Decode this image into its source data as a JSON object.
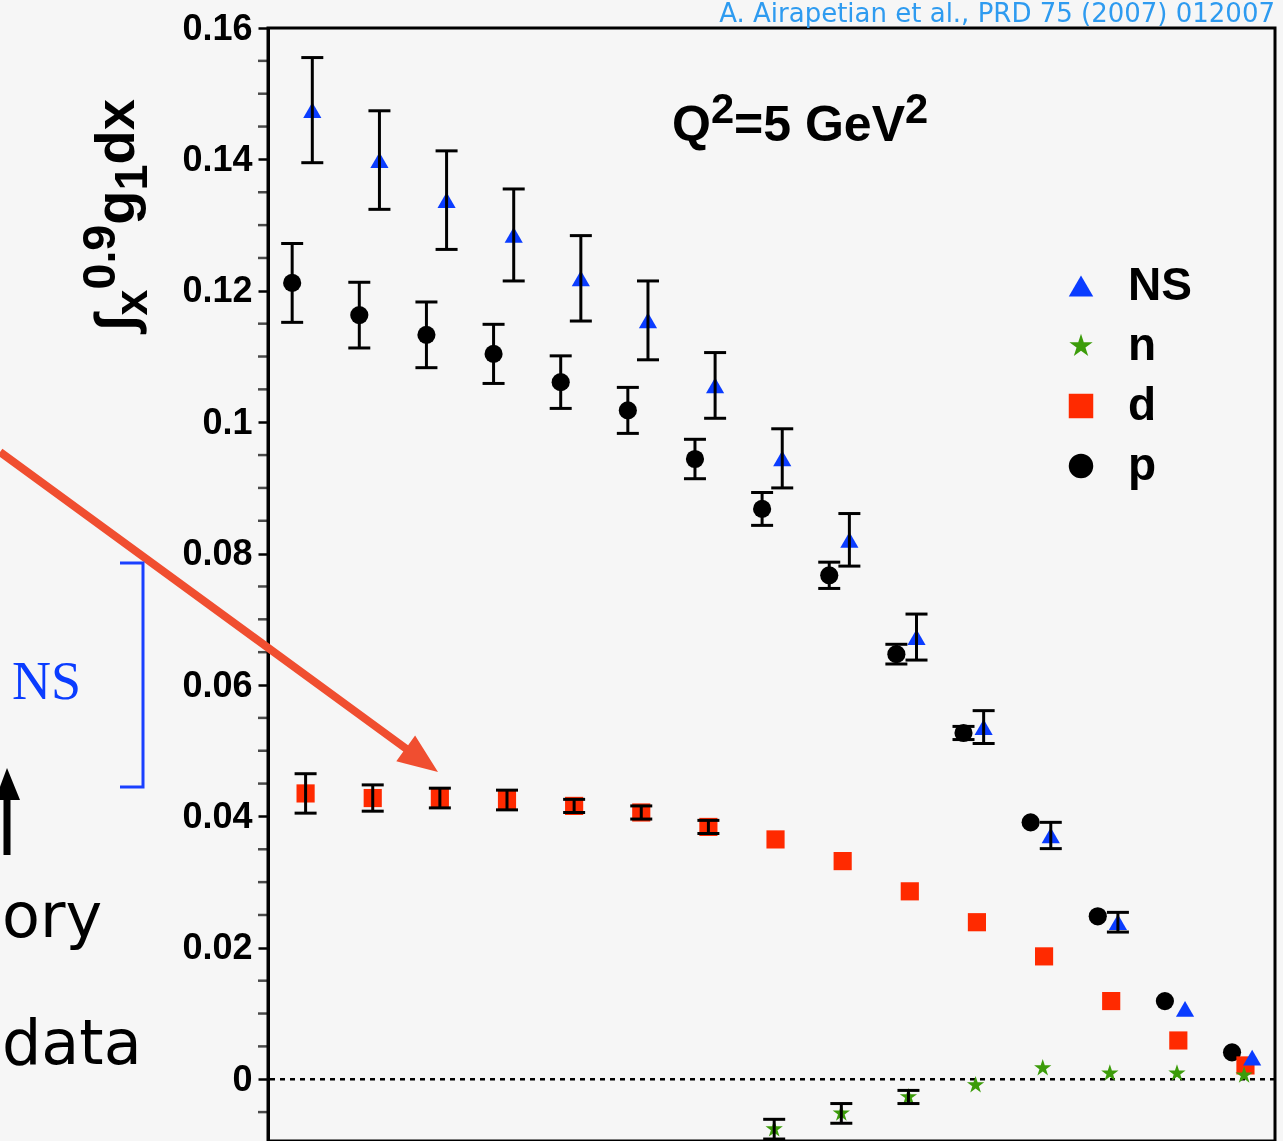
{
  "chart_data": {
    "type": "scatter",
    "ylabel": "∫$_{x}$$^{0.9}$g$_{1}$dx",
    "annotations": [
      "A. Airapetian et al., PRD 75 (2007) 012007",
      "Q$^{2}$=5 GeV$^{2}$",
      "NS",
      "ory",
      "data"
    ],
    "categories": [
      null,
      null,
      null,
      null,
      null,
      null,
      null,
      null,
      null,
      null,
      null,
      null,
      null,
      null,
      null
    ],
    "series": [
      {
        "name": "NS",
        "color": "#0a3cff",
        "marker": "triangle",
        "values": [
          0.1475,
          0.1399,
          0.1338,
          0.1285,
          0.1219,
          0.1155,
          0.1056,
          0.0945,
          0.0821,
          0.0673,
          0.0536,
          0.0371,
          0.0239,
          0.0107,
          0.0033
        ],
        "errors": [
          0.008,
          0.0075,
          0.0075,
          0.007,
          0.0065,
          0.006,
          0.005,
          0.0045,
          0.004,
          0.0035,
          0.0025,
          0.002,
          0.0015,
          null,
          null
        ]
      },
      {
        "name": "n",
        "color": "#3c9c0a",
        "marker": "star",
        "values": [
          null,
          null,
          null,
          null,
          null,
          null,
          null,
          -0.0076,
          -0.0052,
          -0.0027,
          -0.0009,
          0.0017,
          0.0009,
          0.0009,
          0.0006
        ],
        "errors": [
          null,
          null,
          null,
          null,
          null,
          null,
          null,
          0.0015,
          0.0015,
          0.001,
          null,
          null,
          null,
          null,
          null
        ]
      },
      {
        "name": "d",
        "color": "#ff2a00",
        "marker": "square",
        "values": [
          0.0435,
          0.0428,
          0.0428,
          0.0425,
          0.0416,
          0.0406,
          0.0384,
          0.0365,
          0.0332,
          0.0286,
          0.0239,
          0.0187,
          0.0119,
          0.0059,
          0.0021
        ],
        "errors": [
          0.003,
          0.002,
          0.0015,
          0.0015,
          0.001,
          0.001,
          0.001,
          null,
          null,
          null,
          null,
          null,
          null,
          null,
          null
        ]
      },
      {
        "name": "p",
        "color": "#000000",
        "marker": "circle",
        "values": [
          0.1212,
          0.1163,
          0.1133,
          0.1104,
          0.1061,
          0.1018,
          0.0944,
          0.0868,
          0.0767,
          0.0647,
          0.0527,
          0.0391,
          0.0248,
          0.0119,
          0.0041
        ],
        "errors": [
          0.006,
          0.005,
          0.005,
          0.0045,
          0.004,
          0.0035,
          0.003,
          0.0025,
          0.002,
          0.0015,
          0.001,
          null,
          null,
          null,
          null
        ]
      }
    ],
    "ylim": [
      -0.0094,
      0.16
    ],
    "yticks": [
      {
        "value": -0.005,
        "label": null
      },
      0,
      {
        "value": 0.005,
        "label": null
      },
      {
        "value": 0.01,
        "label": null
      },
      {
        "value": 0.015,
        "label": null
      },
      0.02,
      {
        "value": 0.025,
        "label": null
      },
      {
        "value": 0.03,
        "label": null
      },
      {
        "value": 0.035,
        "label": null
      },
      0.04,
      {
        "value": 0.045,
        "label": null
      },
      {
        "value": 0.05,
        "label": null
      },
      {
        "value": 0.055,
        "label": null
      },
      0.06,
      {
        "value": 0.065,
        "label": null
      },
      {
        "value": 0.07,
        "label": null
      },
      {
        "value": 0.075,
        "label": null
      },
      0.08,
      {
        "value": 0.085,
        "label": null
      },
      {
        "value": 0.09,
        "label": null
      },
      {
        "value": 0.095,
        "label": null
      },
      0.1,
      {
        "value": 0.105,
        "label": null
      },
      {
        "value": 0.11,
        "label": null
      },
      {
        "value": 0.115,
        "label": null
      },
      0.12,
      {
        "value": 0.125,
        "label": null
      },
      {
        "value": 0.13,
        "label": null
      },
      {
        "value": 0.135,
        "label": null
      },
      0.14,
      {
        "value": 0.145,
        "label": null
      },
      {
        "value": 0.15,
        "label": null
      },
      {
        "value": 0.155,
        "label": null
      },
      0.16
    ],
    "tick_labels": "y",
    "ref_lines": [
      {
        "axis": "y",
        "value": 0,
        "line_style": "dotted",
        "color": "#000000"
      }
    ],
    "legend": "top right",
    "grid": false
  }
}
